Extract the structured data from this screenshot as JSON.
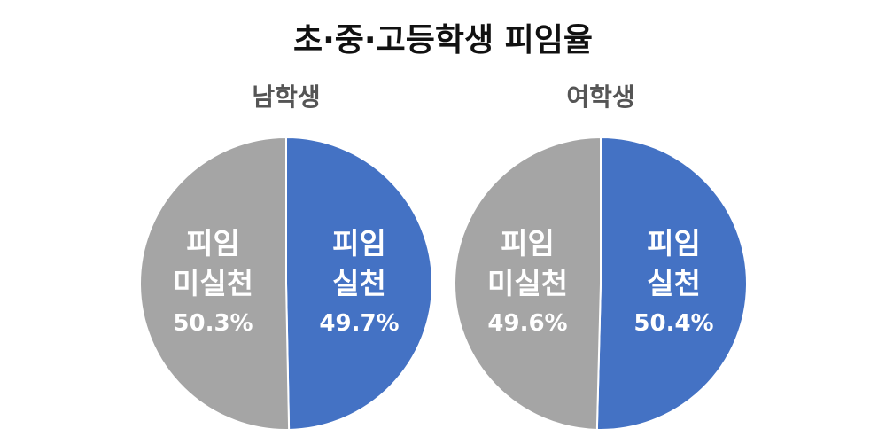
{
  "title": "초·중·고등학생 피임율",
  "chart_data": [
    {
      "type": "pie",
      "title": "남학생",
      "categories": [
        "피임\n실천",
        "피임\n미실천"
      ],
      "values": [
        49.7,
        50.3
      ],
      "value_labels": [
        "49.7%",
        "50.3%"
      ],
      "colors": [
        "#4472c4",
        "#a5a5a5"
      ]
    },
    {
      "type": "pie",
      "title": "여학생",
      "categories": [
        "피임\n실천",
        "피임\n미실천"
      ],
      "values": [
        50.4,
        49.6
      ],
      "value_labels": [
        "50.4%",
        "49.6%"
      ],
      "colors": [
        "#4472c4",
        "#a5a5a5"
      ]
    }
  ]
}
